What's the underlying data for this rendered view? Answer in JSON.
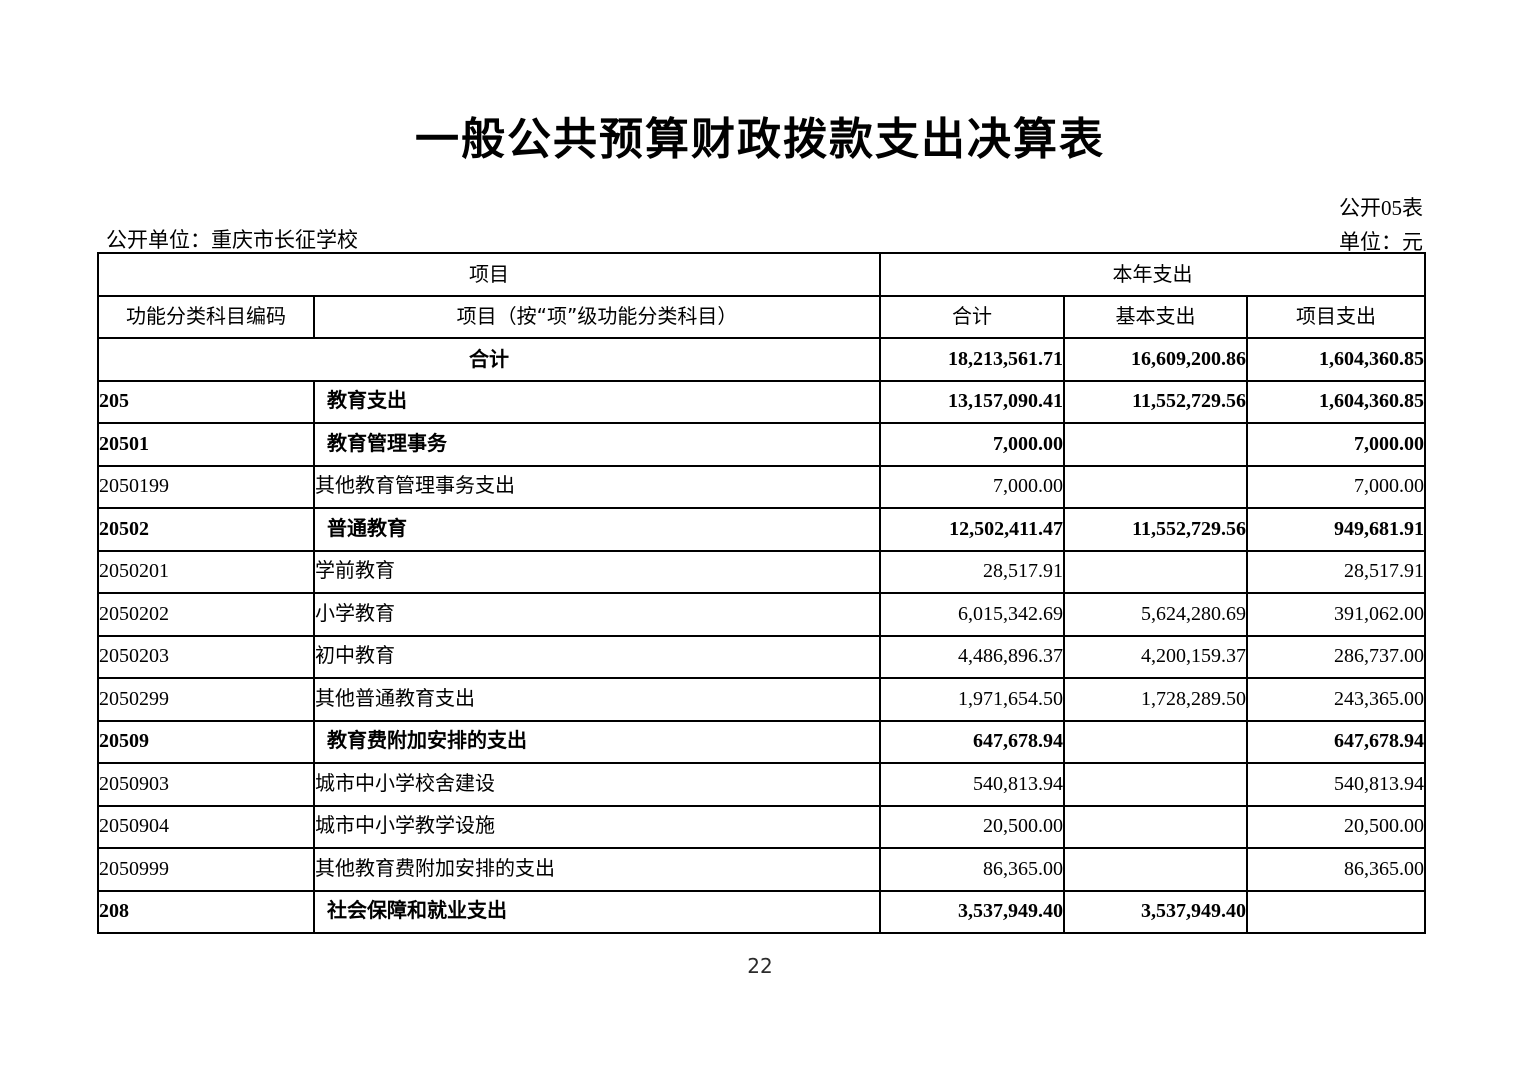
{
  "page": {
    "title": "一般公共预算财政拨款支出决算表",
    "table_code": "公开05表",
    "publishing_unit": "公开单位：重庆市长征学校",
    "currency_unit": "单位：元",
    "page_number": "22"
  },
  "table": {
    "header": {
      "group_item": "项目",
      "group_year_expenditure": "本年支出",
      "col_code": "功能分类科目编码",
      "col_item": "项目（按“项”级功能分类科目）",
      "col_total": "合计",
      "col_basic": "基本支出",
      "col_project": "项目支出"
    },
    "rows": [
      {
        "code": "",
        "item": "合计",
        "total": "18,213,561.71",
        "basic": "16,609,200.86",
        "project": "1,604,360.85",
        "bold": true,
        "merged": true
      },
      {
        "code": "205",
        "item": "教育支出",
        "total": "13,157,090.41",
        "basic": "11,552,729.56",
        "project": "1,604,360.85",
        "bold": true,
        "merged": false
      },
      {
        "code": "20501",
        "item": "教育管理事务",
        "total": "7,000.00",
        "basic": "",
        "project": "7,000.00",
        "bold": true,
        "merged": false
      },
      {
        "code": "2050199",
        "item": "其他教育管理事务支出",
        "total": "7,000.00",
        "basic": "",
        "project": "7,000.00",
        "bold": false,
        "merged": false
      },
      {
        "code": "20502",
        "item": "普通教育",
        "total": "12,502,411.47",
        "basic": "11,552,729.56",
        "project": "949,681.91",
        "bold": true,
        "merged": false
      },
      {
        "code": "2050201",
        "item": "学前教育",
        "total": "28,517.91",
        "basic": "",
        "project": "28,517.91",
        "bold": false,
        "merged": false
      },
      {
        "code": "2050202",
        "item": "小学教育",
        "total": "6,015,342.69",
        "basic": "5,624,280.69",
        "project": "391,062.00",
        "bold": false,
        "merged": false
      },
      {
        "code": "2050203",
        "item": "初中教育",
        "total": "4,486,896.37",
        "basic": "4,200,159.37",
        "project": "286,737.00",
        "bold": false,
        "merged": false
      },
      {
        "code": "2050299",
        "item": "其他普通教育支出",
        "total": "1,971,654.50",
        "basic": "1,728,289.50",
        "project": "243,365.00",
        "bold": false,
        "merged": false
      },
      {
        "code": "20509",
        "item": "教育费附加安排的支出",
        "total": "647,678.94",
        "basic": "",
        "project": "647,678.94",
        "bold": true,
        "merged": false
      },
      {
        "code": "2050903",
        "item": "城市中小学校舍建设",
        "total": "540,813.94",
        "basic": "",
        "project": "540,813.94",
        "bold": false,
        "merged": false
      },
      {
        "code": "2050904",
        "item": "城市中小学教学设施",
        "total": "20,500.00",
        "basic": "",
        "project": "20,500.00",
        "bold": false,
        "merged": false
      },
      {
        "code": "2050999",
        "item": "其他教育费附加安排的支出",
        "total": "86,365.00",
        "basic": "",
        "project": "86,365.00",
        "bold": false,
        "merged": false
      },
      {
        "code": "208",
        "item": "社会保障和就业支出",
        "total": "3,537,949.40",
        "basic": "3,537,949.40",
        "project": "",
        "bold": true,
        "merged": false
      }
    ]
  }
}
